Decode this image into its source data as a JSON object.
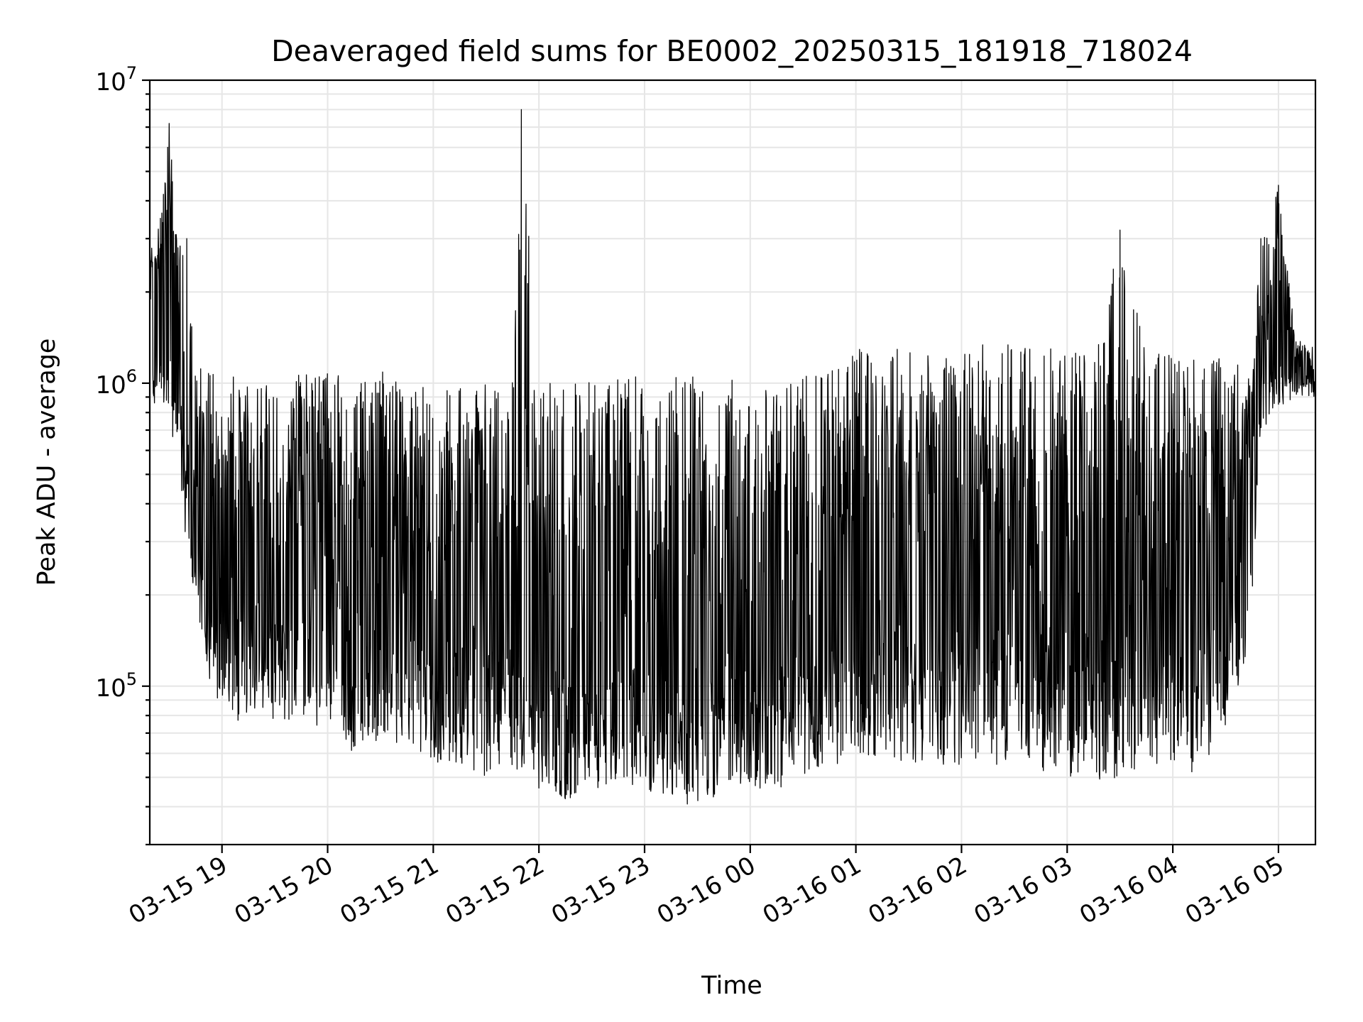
{
  "chart_data": {
    "type": "line",
    "title": "Deaveraged field sums for BE0002_20250315_181918_718024",
    "xlabel": "Time",
    "ylabel": "Peak ADU - average",
    "y_scale": "log",
    "ylim": [
      30000,
      10000000
    ],
    "xlim": [
      "2025-03-15 18:19",
      "2025-03-16 05:21"
    ],
    "x_tick_labels": [
      "03-15 19",
      "03-15 20",
      "03-15 21",
      "03-15 22",
      "03-15 23",
      "03-16 00",
      "03-16 01",
      "03-16 02",
      "03-16 03",
      "03-16 04",
      "03-16 05"
    ],
    "y_tick_labels": [
      {
        "base": "10",
        "exp": "5",
        "value": 100000
      },
      {
        "base": "10",
        "exp": "6",
        "value": 1000000
      },
      {
        "base": "10",
        "exp": "7",
        "value": 10000000
      }
    ],
    "grid": true,
    "line_color": "#000000",
    "series": [
      {
        "x": [
          "2025-03-15 18:19",
          "2025-03-15 18:25",
          "2025-03-15 18:30",
          "2025-03-15 18:35",
          "2025-03-15 18:40",
          "2025-03-15 18:45",
          "2025-03-15 18:50",
          "2025-03-15 18:55",
          "2025-03-15 19:00",
          "2025-03-15 19:10",
          "2025-03-15 19:20",
          "2025-03-15 19:30",
          "2025-03-15 19:45",
          "2025-03-15 20:00",
          "2025-03-15 20:15",
          "2025-03-15 20:30",
          "2025-03-15 20:45",
          "2025-03-15 21:00",
          "2025-03-15 21:15",
          "2025-03-15 21:30",
          "2025-03-15 21:45",
          "2025-03-15 21:50",
          "2025-03-15 22:00",
          "2025-03-15 22:15",
          "2025-03-15 22:30",
          "2025-03-15 22:45",
          "2025-03-15 23:00",
          "2025-03-15 23:15",
          "2025-03-15 23:30",
          "2025-03-15 23:45",
          "2025-03-16 00:00",
          "2025-03-16 00:15",
          "2025-03-16 00:30",
          "2025-03-16 00:45",
          "2025-03-16 01:00",
          "2025-03-16 01:15",
          "2025-03-16 01:30",
          "2025-03-16 01:45",
          "2025-03-16 02:00",
          "2025-03-16 02:15",
          "2025-03-16 02:30",
          "2025-03-16 02:45",
          "2025-03-16 03:00",
          "2025-03-16 03:15",
          "2025-03-16 03:30",
          "2025-03-16 03:45",
          "2025-03-16 04:00",
          "2025-03-16 04:15",
          "2025-03-16 04:30",
          "2025-03-16 04:45",
          "2025-03-16 04:50",
          "2025-03-16 05:00",
          "2025-03-16 05:10",
          "2025-03-16 05:21"
        ],
        "envelope_max": [
          2800000,
          3500000,
          7200000,
          2800000,
          3000000,
          1200000,
          1100000,
          1100000,
          1000000,
          1100000,
          1000000,
          1200000,
          1100000,
          1100000,
          1000000,
          1100000,
          1000000,
          1050000,
          1000000,
          1000000,
          1050000,
          8000000,
          1050000,
          1050000,
          1000000,
          1050000,
          1050000,
          1050000,
          1050000,
          1050000,
          1000000,
          1000000,
          1050000,
          1100000,
          1300000,
          1350000,
          1350000,
          1350000,
          1350000,
          1350000,
          1350000,
          1300000,
          1300000,
          1300000,
          3200000,
          1300000,
          1250000,
          1250000,
          1200000,
          1150000,
          3000000,
          4500000,
          1400000,
          1300000
        ],
        "envelope_min": [
          800000,
          900000,
          700000,
          600000,
          270000,
          200000,
          130000,
          90000,
          90000,
          70000,
          85000,
          75000,
          80000,
          70000,
          60000,
          65000,
          60000,
          55000,
          55000,
          50000,
          55000,
          50000,
          45000,
          42000,
          45000,
          48000,
          45000,
          42000,
          40000,
          45000,
          45000,
          45000,
          50000,
          55000,
          55000,
          60000,
          55000,
          55000,
          55000,
          55000,
          55000,
          50000,
          50000,
          48000,
          50000,
          55000,
          55000,
          50000,
          70000,
          150000,
          700000,
          800000,
          900000,
          900000
        ],
        "typical": [
          1400000,
          1500000,
          1400000,
          1300000,
          600000,
          350000,
          250000,
          220000,
          200000,
          200000,
          200000,
          190000,
          180000,
          170000,
          160000,
          160000,
          160000,
          150000,
          150000,
          140000,
          140000,
          140000,
          130000,
          130000,
          130000,
          130000,
          130000,
          130000,
          130000,
          130000,
          130000,
          130000,
          140000,
          150000,
          150000,
          160000,
          160000,
          160000,
          160000,
          160000,
          160000,
          160000,
          160000,
          160000,
          160000,
          160000,
          160000,
          160000,
          170000,
          250000,
          1100000,
          1200000,
          1100000,
          1050000
        ]
      }
    ]
  }
}
